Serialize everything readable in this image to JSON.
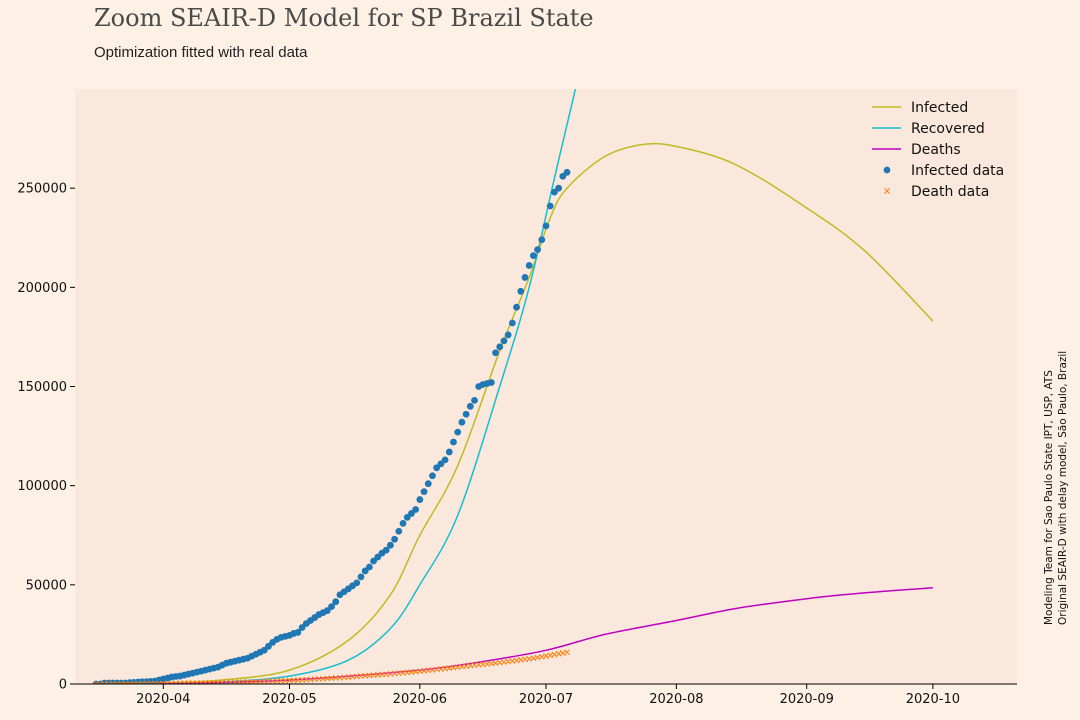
{
  "title": "Zoom SEAIR-D Model for SP Brazil State",
  "subtitle": "Optimization fitted with real data",
  "credit_line1": "Modeling Team for Sao Paulo State IPT, USP, ATS",
  "credit_line2": "Original SEAIR-D with delay model, São Paulo, Brazil",
  "colors": {
    "infected": "#bcbd22",
    "recovered": "#17becf",
    "deaths": "#c000c0",
    "infected_data": "#1f77b4",
    "death_data": "#ff7f0e",
    "plot_bg": "#fae8dc",
    "page_bg": "#fdf1e6"
  },
  "chart_data": {
    "type": "line",
    "x_axis": {
      "type": "date",
      "range": [
        "2020-03-11",
        "2020-10-21"
      ],
      "ticks": [
        "2020-04-01",
        "2020-05-01",
        "2020-06-01",
        "2020-07-01",
        "2020-08-01",
        "2020-09-01",
        "2020-10-01"
      ],
      "tick_labels": [
        "2020-04",
        "2020-05",
        "2020-06",
        "2020-07",
        "2020-08",
        "2020-09",
        "2020-10"
      ]
    },
    "y_axis": {
      "range": [
        0,
        300000
      ],
      "ticks": [
        0,
        50000,
        100000,
        150000,
        200000,
        250000
      ],
      "tick_labels": [
        "0",
        "50000",
        "100000",
        "150000",
        "200000",
        "250000"
      ]
    },
    "grid": false,
    "legend": "top-right",
    "series": [
      {
        "name": "Infected",
        "kind": "line",
        "points": [
          [
            "2020-03-16",
            0
          ],
          [
            "2020-04-01",
            500
          ],
          [
            "2020-04-15",
            2000
          ],
          [
            "2020-05-01",
            7000
          ],
          [
            "2020-05-15",
            22000
          ],
          [
            "2020-05-25",
            45000
          ],
          [
            "2020-06-01",
            75000
          ],
          [
            "2020-06-10",
            110000
          ],
          [
            "2020-06-20",
            168000
          ],
          [
            "2020-06-27",
            205000
          ],
          [
            "2020-07-02",
            235000
          ],
          [
            "2020-07-06",
            250000
          ],
          [
            "2020-07-15",
            266000
          ],
          [
            "2020-07-24",
            272000
          ],
          [
            "2020-08-01",
            271000
          ],
          [
            "2020-08-15",
            262000
          ],
          [
            "2020-09-01",
            240000
          ],
          [
            "2020-09-15",
            218000
          ],
          [
            "2020-10-01",
            183000
          ]
        ]
      },
      {
        "name": "Recovered",
        "kind": "line",
        "points": [
          [
            "2020-03-16",
            0
          ],
          [
            "2020-04-01",
            200
          ],
          [
            "2020-04-15",
            1000
          ],
          [
            "2020-05-01",
            4000
          ],
          [
            "2020-05-15",
            12000
          ],
          [
            "2020-05-25",
            28000
          ],
          [
            "2020-06-01",
            50000
          ],
          [
            "2020-06-10",
            85000
          ],
          [
            "2020-06-20",
            150000
          ],
          [
            "2020-06-27",
            200000
          ],
          [
            "2020-07-03",
            255000
          ],
          [
            "2020-07-08",
            300000
          ]
        ]
      },
      {
        "name": "Deaths",
        "kind": "line",
        "points": [
          [
            "2020-03-16",
            0
          ],
          [
            "2020-04-01",
            100
          ],
          [
            "2020-05-01",
            2000
          ],
          [
            "2020-06-01",
            7000
          ],
          [
            "2020-06-15",
            11000
          ],
          [
            "2020-07-01",
            17000
          ],
          [
            "2020-07-15",
            25000
          ],
          [
            "2020-08-01",
            32000
          ],
          [
            "2020-08-15",
            38000
          ],
          [
            "2020-09-01",
            43000
          ],
          [
            "2020-09-15",
            46000
          ],
          [
            "2020-10-01",
            48500
          ]
        ]
      },
      {
        "name": "Infected data",
        "kind": "scatter",
        "marker": "circle",
        "points": [
          [
            "2020-03-16",
            0
          ],
          [
            "2020-03-17",
            0
          ],
          [
            "2020-03-18",
            500
          ],
          [
            "2020-03-19",
            500
          ],
          [
            "2020-03-20",
            500
          ],
          [
            "2020-03-21",
            500
          ],
          [
            "2020-03-22",
            500
          ],
          [
            "2020-03-23",
            500
          ],
          [
            "2020-03-24",
            700
          ],
          [
            "2020-03-25",
            800
          ],
          [
            "2020-03-26",
            1000
          ],
          [
            "2020-03-27",
            1100
          ],
          [
            "2020-03-28",
            1200
          ],
          [
            "2020-03-29",
            1300
          ],
          [
            "2020-03-30",
            1500
          ],
          [
            "2020-03-31",
            2000
          ],
          [
            "2020-04-01",
            2500
          ],
          [
            "2020-04-02",
            3000
          ],
          [
            "2020-04-03",
            3500
          ],
          [
            "2020-04-04",
            3800
          ],
          [
            "2020-04-05",
            4000
          ],
          [
            "2020-04-06",
            4500
          ],
          [
            "2020-04-07",
            5000
          ],
          [
            "2020-04-08",
            5500
          ],
          [
            "2020-04-09",
            6000
          ],
          [
            "2020-04-10",
            6500
          ],
          [
            "2020-04-11",
            7000
          ],
          [
            "2020-04-12",
            7500
          ],
          [
            "2020-04-13",
            8000
          ],
          [
            "2020-04-14",
            8500
          ],
          [
            "2020-04-15",
            9500
          ],
          [
            "2020-04-16",
            10500
          ],
          [
            "2020-04-17",
            11000
          ],
          [
            "2020-04-18",
            11500
          ],
          [
            "2020-04-19",
            12000
          ],
          [
            "2020-04-20",
            12500
          ],
          [
            "2020-04-21",
            13000
          ],
          [
            "2020-04-22",
            14000
          ],
          [
            "2020-04-23",
            15000
          ],
          [
            "2020-04-24",
            16000
          ],
          [
            "2020-04-25",
            17000
          ],
          [
            "2020-04-26",
            19000
          ],
          [
            "2020-04-27",
            21000
          ],
          [
            "2020-04-28",
            22500
          ],
          [
            "2020-04-29",
            23500
          ],
          [
            "2020-04-30",
            24000
          ],
          [
            "2020-05-01",
            24500
          ],
          [
            "2020-05-02",
            25500
          ],
          [
            "2020-05-03",
            26000
          ],
          [
            "2020-05-04",
            28500
          ],
          [
            "2020-05-05",
            30500
          ],
          [
            "2020-05-06",
            32000
          ],
          [
            "2020-05-07",
            33500
          ],
          [
            "2020-05-08",
            35000
          ],
          [
            "2020-05-09",
            36000
          ],
          [
            "2020-05-10",
            37000
          ],
          [
            "2020-05-11",
            39000
          ],
          [
            "2020-05-12",
            41500
          ],
          [
            "2020-05-13",
            45000
          ],
          [
            "2020-05-14",
            46500
          ],
          [
            "2020-05-15",
            48000
          ],
          [
            "2020-05-16",
            49500
          ],
          [
            "2020-05-17",
            51000
          ],
          [
            "2020-05-18",
            54000
          ],
          [
            "2020-05-19",
            57000
          ],
          [
            "2020-05-20",
            59000
          ],
          [
            "2020-05-21",
            62000
          ],
          [
            "2020-05-22",
            64000
          ],
          [
            "2020-05-23",
            66000
          ],
          [
            "2020-05-24",
            67500
          ],
          [
            "2020-05-25",
            70000
          ],
          [
            "2020-05-26",
            73000
          ],
          [
            "2020-05-27",
            77000
          ],
          [
            "2020-05-28",
            81000
          ],
          [
            "2020-05-29",
            84000
          ],
          [
            "2020-05-30",
            86000
          ],
          [
            "2020-05-31",
            88000
          ],
          [
            "2020-06-01",
            93000
          ],
          [
            "2020-06-02",
            97000
          ],
          [
            "2020-06-03",
            101000
          ],
          [
            "2020-06-04",
            105000
          ],
          [
            "2020-06-05",
            109000
          ],
          [
            "2020-06-06",
            111000
          ],
          [
            "2020-06-07",
            113000
          ],
          [
            "2020-06-08",
            117000
          ],
          [
            "2020-06-09",
            122000
          ],
          [
            "2020-06-10",
            127000
          ],
          [
            "2020-06-11",
            132000
          ],
          [
            "2020-06-12",
            136000
          ],
          [
            "2020-06-13",
            140000
          ],
          [
            "2020-06-14",
            143000
          ],
          [
            "2020-06-15",
            150000
          ],
          [
            "2020-06-16",
            151000
          ],
          [
            "2020-06-17",
            151500
          ],
          [
            "2020-06-18",
            152000
          ],
          [
            "2020-06-19",
            167000
          ],
          [
            "2020-06-20",
            170000
          ],
          [
            "2020-06-21",
            173000
          ],
          [
            "2020-06-22",
            176000
          ],
          [
            "2020-06-23",
            182000
          ],
          [
            "2020-06-24",
            190000
          ],
          [
            "2020-06-25",
            198000
          ],
          [
            "2020-06-26",
            205000
          ],
          [
            "2020-06-27",
            211000
          ],
          [
            "2020-06-28",
            216000
          ],
          [
            "2020-06-29",
            219000
          ],
          [
            "2020-06-30",
            224000
          ],
          [
            "2020-07-01",
            231000
          ],
          [
            "2020-07-02",
            241000
          ],
          [
            "2020-07-03",
            248000
          ],
          [
            "2020-07-04",
            250000
          ],
          [
            "2020-07-05",
            256000
          ],
          [
            "2020-07-06",
            258000
          ]
        ]
      },
      {
        "name": "Death data",
        "kind": "scatter",
        "marker": "x",
        "points": [
          [
            "2020-03-16",
            0
          ],
          [
            "2020-03-20",
            50
          ],
          [
            "2020-03-25",
            100
          ],
          [
            "2020-03-30",
            200
          ],
          [
            "2020-04-04",
            350
          ],
          [
            "2020-04-09",
            500
          ],
          [
            "2020-04-14",
            750
          ],
          [
            "2020-04-19",
            950
          ],
          [
            "2020-04-24",
            1200
          ],
          [
            "2020-04-29",
            1550
          ],
          [
            "2020-05-04",
            2050
          ],
          [
            "2020-05-09",
            2700
          ],
          [
            "2020-05-14",
            3300
          ],
          [
            "2020-05-19",
            4150
          ],
          [
            "2020-05-24",
            4900
          ],
          [
            "2020-05-29",
            5800
          ],
          [
            "2020-06-03",
            6900
          ],
          [
            "2020-06-08",
            8000
          ],
          [
            "2020-06-13",
            9300
          ],
          [
            "2020-06-18",
            10300
          ],
          [
            "2020-06-23",
            11600
          ],
          [
            "2020-06-28",
            13000
          ],
          [
            "2020-07-02",
            14500
          ],
          [
            "2020-07-06",
            16000
          ]
        ]
      }
    ]
  }
}
